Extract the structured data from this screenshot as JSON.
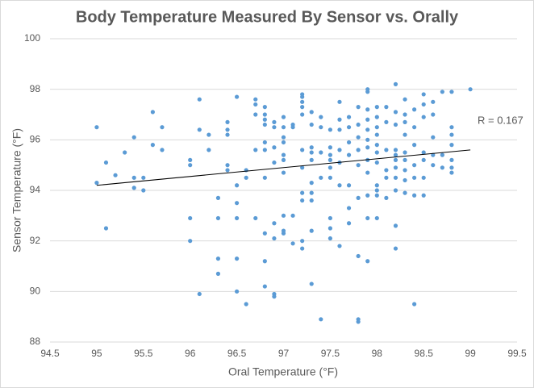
{
  "chart_data": {
    "type": "scatter",
    "title": "Body Temperature Measured By Sensor vs. Orally",
    "x_label": "Oral Temperature (°F)",
    "y_label": "Sensor Temperature (°F)",
    "color": "#5b9bd5",
    "grid": true,
    "xlim": [
      94.5,
      99.5
    ],
    "xticks": [
      94.5,
      95,
      95.5,
      96,
      96.5,
      97,
      97.5,
      98,
      98.5,
      99,
      99.5
    ],
    "ylim": [
      88,
      100
    ],
    "yticks": [
      88,
      90,
      92,
      94,
      96,
      98,
      100
    ],
    "x": [
      95.0,
      95.0,
      95.1,
      95.1,
      95.2,
      95.3,
      95.4,
      95.4,
      95.4,
      95.5,
      95.5,
      95.6,
      95.6,
      95.7,
      95.7,
      96.0,
      96.0,
      96.0,
      96.0,
      96.1,
      96.1,
      96.1,
      96.2,
      96.2,
      96.3,
      96.3,
      96.3,
      96.3,
      96.4,
      96.4,
      96.4,
      96.4,
      96.4,
      96.5,
      96.5,
      96.5,
      96.5,
      96.5,
      96.5,
      96.6,
      96.6,
      96.6,
      96.7,
      96.7,
      96.7,
      96.7,
      96.7,
      96.8,
      96.8,
      96.8,
      96.8,
      96.8,
      96.8,
      96.8,
      96.8,
      96.8,
      96.8,
      96.9,
      96.9,
      96.9,
      96.9,
      96.9,
      96.9,
      96.9,
      96.9,
      97.0,
      97.0,
      97.0,
      97.0,
      97.0,
      97.0,
      97.0,
      97.0,
      97.0,
      97.0,
      97.1,
      97.1,
      97.1,
      97.1,
      97.2,
      97.2,
      97.2,
      97.2,
      97.2,
      97.2,
      97.2,
      97.2,
      97.2,
      97.2,
      97.2,
      97.3,
      97.3,
      97.3,
      97.3,
      97.3,
      97.3,
      97.3,
      97.3,
      97.3,
      97.3,
      97.4,
      97.4,
      97.4,
      97.4,
      97.4,
      97.5,
      97.5,
      97.5,
      97.5,
      97.5,
      97.5,
      97.5,
      97.5,
      97.5,
      97.6,
      97.6,
      97.6,
      97.6,
      97.6,
      97.6,
      97.6,
      97.7,
      97.7,
      97.7,
      97.7,
      97.7,
      97.7,
      97.7,
      97.8,
      97.8,
      97.8,
      97.8,
      97.8,
      97.8,
      97.8,
      97.8,
      97.8,
      97.9,
      97.9,
      97.9,
      97.9,
      97.9,
      97.9,
      97.9,
      97.9,
      97.9,
      97.9,
      97.9,
      97.9,
      98.0,
      98.0,
      98.0,
      98.0,
      98.0,
      98.0,
      98.0,
      98.0,
      98.0,
      98.0,
      98.0,
      98.1,
      98.1,
      98.1,
      98.1,
      98.1,
      98.1,
      98.2,
      98.2,
      98.2,
      98.2,
      98.2,
      98.2,
      98.2,
      98.2,
      98.2,
      98.2,
      98.2,
      98.3,
      98.3,
      98.3,
      98.3,
      98.3,
      98.3,
      98.3,
      98.3,
      98.3,
      98.4,
      98.4,
      98.4,
      98.4,
      98.4,
      98.4,
      98.4,
      98.5,
      98.5,
      98.5,
      98.5,
      98.5,
      98.5,
      98.5,
      98.6,
      98.6,
      98.6,
      98.6,
      98.6,
      98.7,
      98.7,
      98.7,
      98.8,
      98.8,
      98.8,
      98.8,
      98.8,
      98.8,
      98.8,
      99.0
    ],
    "values": [
      96.5,
      94.3,
      95.1,
      92.5,
      94.6,
      95.5,
      96.1,
      94.5,
      94.1,
      94.5,
      94.0,
      97.1,
      95.8,
      96.5,
      95.6,
      95.2,
      95.0,
      92.9,
      92.0,
      97.6,
      96.4,
      89.9,
      96.2,
      95.6,
      93.7,
      92.9,
      91.3,
      90.7,
      96.7,
      96.4,
      96.2,
      95.0,
      94.8,
      97.7,
      94.2,
      93.5,
      92.9,
      91.3,
      90.0,
      94.8,
      94.5,
      89.5,
      97.6,
      97.4,
      97.0,
      95.6,
      92.9,
      97.3,
      97.0,
      96.8,
      96.6,
      95.9,
      95.6,
      94.5,
      92.3,
      91.2,
      90.2,
      96.7,
      96.5,
      95.7,
      95.1,
      92.7,
      92.1,
      89.9,
      89.8,
      96.9,
      96.5,
      96.1,
      95.9,
      95.4,
      95.2,
      94.7,
      93.0,
      92.4,
      92.3,
      96.6,
      96.5,
      93.0,
      91.9,
      97.8,
      97.7,
      97.5,
      97.3,
      97.0,
      95.6,
      94.9,
      93.9,
      93.6,
      92.0,
      91.7,
      97.1,
      96.6,
      95.7,
      95.5,
      95.2,
      94.3,
      93.9,
      93.6,
      92.4,
      90.3,
      96.9,
      96.5,
      95.5,
      94.5,
      88.9,
      96.4,
      95.7,
      95.4,
      95.2,
      94.9,
      94.5,
      92.9,
      92.5,
      92.1,
      97.5,
      96.8,
      96.4,
      95.6,
      95.1,
      94.2,
      91.8,
      96.9,
      96.5,
      95.9,
      95.4,
      94.2,
      93.3,
      92.7,
      97.3,
      96.6,
      96.1,
      95.6,
      95.0,
      93.7,
      91.4,
      88.9,
      88.8,
      98.0,
      97.9,
      97.2,
      96.8,
      96.4,
      96.0,
      95.7,
      95.2,
      94.7,
      93.8,
      92.9,
      91.2,
      97.3,
      96.9,
      96.5,
      96.2,
      95.8,
      95.5,
      95.1,
      94.2,
      94.0,
      93.8,
      92.9,
      97.3,
      96.7,
      95.6,
      94.8,
      94.5,
      93.7,
      98.2,
      97.1,
      96.6,
      95.6,
      95.4,
      95.2,
      94.9,
      94.5,
      94.0,
      92.6,
      91.7,
      97.6,
      97.0,
      96.7,
      96.2,
      95.5,
      95.2,
      94.8,
      94.4,
      93.9,
      97.2,
      96.5,
      95.8,
      95.0,
      94.5,
      93.8,
      89.5,
      97.8,
      97.4,
      96.9,
      95.5,
      95.2,
      94.5,
      93.8,
      97.5,
      97.0,
      96.1,
      95.4,
      95.0,
      97.9,
      95.4,
      94.9,
      97.9,
      96.5,
      96.2,
      95.8,
      95.2,
      94.9,
      94.7,
      98.0
    ],
    "trendline": {
      "x": [
        95,
        99
      ],
      "y": [
        94.2,
        95.6
      ],
      "color": "#000000"
    },
    "annotation": "R = 0.167"
  }
}
